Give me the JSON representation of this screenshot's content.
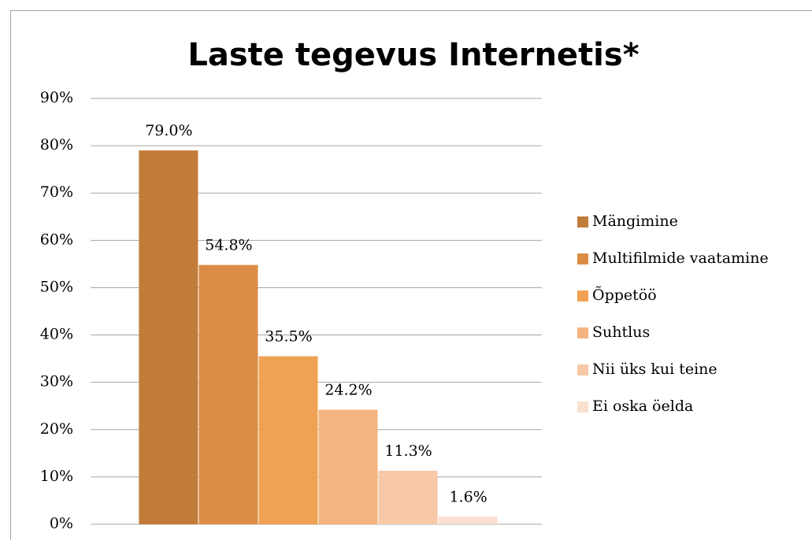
{
  "chart_data": {
    "type": "bar",
    "title": "Laste tegevus Internetis*",
    "categories": [
      null
    ],
    "series": [
      {
        "name": "Mängimine",
        "color": "#c27c3a",
        "values": [
          79.0
        ],
        "value_labels": [
          "79.0%"
        ]
      },
      {
        "name": "Multifilmide vaatamine",
        "color": "#db8c45",
        "values": [
          54.8
        ],
        "value_labels": [
          "54.8%"
        ]
      },
      {
        "name": "Õppetöö",
        "color": "#efa253",
        "values": [
          35.5
        ],
        "value_labels": [
          "35.5%"
        ]
      },
      {
        "name": "Suhtlus",
        "color": "#f4b47f",
        "values": [
          24.2
        ],
        "value_labels": [
          "24.2%"
        ]
      },
      {
        "name": "Nii üks kui teine",
        "color": "#f7c9a8",
        "values": [
          11.3
        ],
        "value_labels": [
          "11.3%"
        ]
      },
      {
        "name": "Ei oska öelda",
        "color": "#fae0cf",
        "values": [
          1.6
        ],
        "value_labels": [
          "1.6%"
        ]
      }
    ],
    "ylim": [
      0,
      90
    ],
    "yticks": [
      {
        "value": 0,
        "label": "0%"
      },
      {
        "value": 10,
        "label": "10%"
      },
      {
        "value": 20,
        "label": "20%"
      },
      {
        "value": 30,
        "label": "30%"
      },
      {
        "value": 40,
        "label": "40%"
      },
      {
        "value": 50,
        "label": "50%"
      },
      {
        "value": 60,
        "label": "60%"
      },
      {
        "value": 70,
        "label": "70%"
      },
      {
        "value": 80,
        "label": "80%"
      },
      {
        "value": 90,
        "label": "90%"
      }
    ],
    "grid": true,
    "legend": "right"
  }
}
